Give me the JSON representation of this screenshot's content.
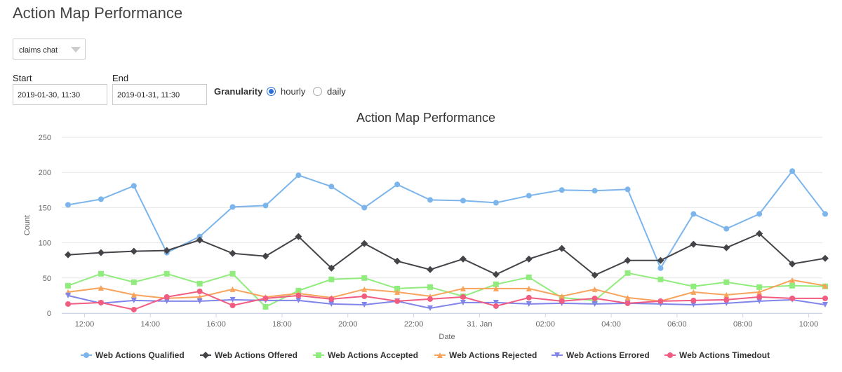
{
  "page": {
    "title": "Action Map Performance"
  },
  "filters": {
    "bot_select": {
      "value": "claims chat"
    },
    "start": {
      "label": "Start",
      "value": "2019-01-30, 11:30"
    },
    "end": {
      "label": "End",
      "value": "2019-01-31, 11:30"
    },
    "granularity": {
      "label": "Granularity",
      "options": [
        "hourly",
        "daily"
      ],
      "selected": "hourly"
    }
  },
  "chart_data": {
    "type": "line",
    "title": "Action Map Performance",
    "xlabel": "Date",
    "ylabel": "Count",
    "ylim": [
      0,
      250
    ],
    "yticks": [
      0,
      50,
      100,
      150,
      200,
      250
    ],
    "x_start": "2019-01-30 11:30",
    "x_end": "2019-01-31 10:30",
    "x": [
      "2019-01-30 11:30",
      "2019-01-30 12:30",
      "2019-01-30 13:30",
      "2019-01-30 14:30",
      "2019-01-30 15:30",
      "2019-01-30 16:30",
      "2019-01-30 17:30",
      "2019-01-30 18:30",
      "2019-01-30 19:30",
      "2019-01-30 20:30",
      "2019-01-30 21:30",
      "2019-01-30 22:30",
      "2019-01-30 23:30",
      "2019-01-31 00:30",
      "2019-01-31 01:30",
      "2019-01-31 02:30",
      "2019-01-31 03:30",
      "2019-01-31 04:30",
      "2019-01-31 05:30",
      "2019-01-31 06:30",
      "2019-01-31 07:30",
      "2019-01-31 08:30",
      "2019-01-31 09:30",
      "2019-01-31 10:30"
    ],
    "xticks": [
      {
        "time": "2019-01-30 12:00",
        "label": "12:00"
      },
      {
        "time": "2019-01-30 14:00",
        "label": "14:00"
      },
      {
        "time": "2019-01-30 16:00",
        "label": "16:00"
      },
      {
        "time": "2019-01-30 18:00",
        "label": "18:00"
      },
      {
        "time": "2019-01-30 20:00",
        "label": "20:00"
      },
      {
        "time": "2019-01-30 22:00",
        "label": "22:00"
      },
      {
        "time": "2019-01-31 00:00",
        "label": "31. Jan"
      },
      {
        "time": "2019-01-31 02:00",
        "label": "02:00"
      },
      {
        "time": "2019-01-31 04:00",
        "label": "04:00"
      },
      {
        "time": "2019-01-31 06:00",
        "label": "06:00"
      },
      {
        "time": "2019-01-31 08:00",
        "label": "08:00"
      },
      {
        "time": "2019-01-31 10:00",
        "label": "10:00"
      }
    ],
    "grid": true,
    "legend_position": "bottom",
    "series": [
      {
        "name": "Web Actions Qualified",
        "color": "#7cb5ec",
        "marker": "circle",
        "values": [
          154,
          162,
          181,
          86,
          109,
          151,
          153,
          196,
          180,
          150,
          183,
          161,
          160,
          157,
          167,
          175,
          174,
          176,
          64,
          141,
          120,
          141,
          202,
          141
        ]
      },
      {
        "name": "Web Actions Offered",
        "color": "#434348",
        "marker": "diamond",
        "values": [
          83,
          86,
          88,
          89,
          104,
          85,
          81,
          109,
          64,
          99,
          74,
          62,
          77,
          55,
          77,
          92,
          54,
          75,
          75,
          98,
          93,
          113,
          70,
          78
        ]
      },
      {
        "name": "Web Actions Accepted",
        "color": "#90ed7d",
        "marker": "square",
        "values": [
          39,
          56,
          44,
          56,
          42,
          56,
          9,
          32,
          48,
          50,
          35,
          37,
          24,
          41,
          51,
          22,
          18,
          57,
          48,
          38,
          44,
          37,
          39,
          38
        ]
      },
      {
        "name": "Web Actions Rejected",
        "color": "#f7a35c",
        "marker": "triangle",
        "values": [
          30,
          36,
          26,
          21,
          23,
          34,
          23,
          28,
          22,
          34,
          30,
          24,
          35,
          35,
          35,
          24,
          34,
          22,
          17,
          30,
          26,
          30,
          47,
          39
        ]
      },
      {
        "name": "Web Actions Errored",
        "color": "#8085e9",
        "marker": "triangle-down",
        "values": [
          25,
          14,
          18,
          17,
          17,
          19,
          18,
          18,
          13,
          12,
          17,
          7,
          15,
          15,
          13,
          14,
          13,
          14,
          13,
          12,
          14,
          17,
          19,
          12
        ]
      },
      {
        "name": "Web Actions Timedout",
        "color": "#f15c80",
        "marker": "circle",
        "values": [
          13,
          15,
          5,
          23,
          31,
          11,
          21,
          25,
          20,
          24,
          17,
          20,
          23,
          10,
          22,
          17,
          21,
          14,
          17,
          18,
          19,
          23,
          21,
          21
        ]
      }
    ]
  }
}
